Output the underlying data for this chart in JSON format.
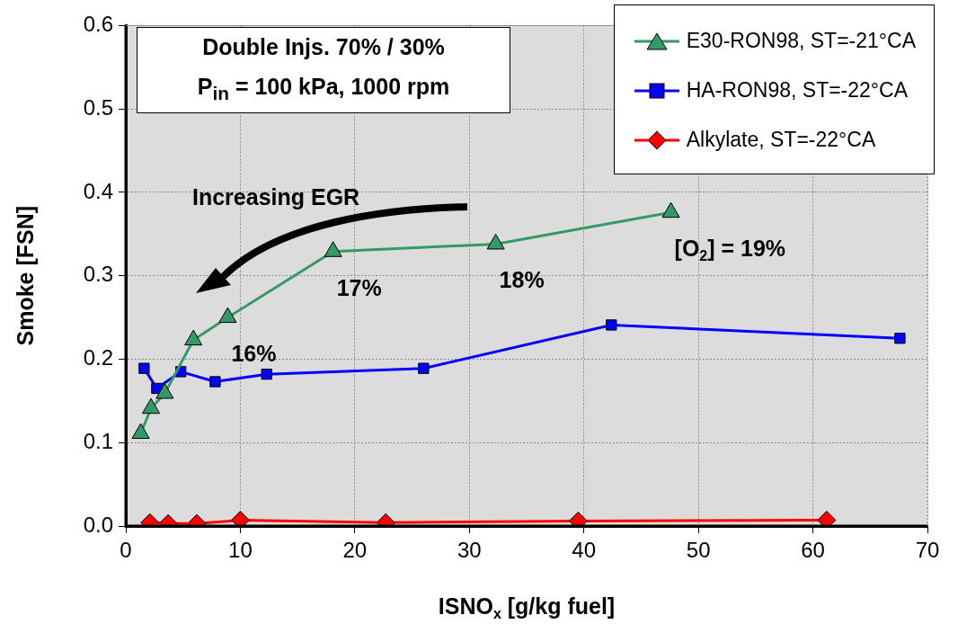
{
  "chart_data": {
    "type": "line",
    "xlabel": "ISNO$_{x}$ [g/kg fuel]",
    "ylabel": "Smoke [FSN]",
    "xlim": [
      0,
      70
    ],
    "xticks": [
      0,
      10,
      20,
      30,
      40,
      50,
      60,
      70
    ],
    "ylim": [
      0,
      0.6
    ],
    "yticks": [
      {
        "value": 0,
        "label": "0.0"
      },
      0.1,
      0.2,
      0.3,
      0.4,
      0.5,
      0.6
    ],
    "grid": true,
    "legend": "top right",
    "series": [
      {
        "name": "E30-RON98, ST=-21°CA",
        "type": "line",
        "marker": "triangle",
        "color": "#339966",
        "x": [
          1.3,
          2.2,
          3.4,
          5.9,
          8.9,
          18.1,
          32.3,
          47.6
        ],
        "values": [
          0.111,
          0.141,
          0.159,
          0.223,
          0.25,
          0.329,
          0.338,
          0.376
        ]
      },
      {
        "name": "HA-RON98, ST=-22°CA",
        "type": "line",
        "marker": "square",
        "color": "#0000ff",
        "x": [
          1.6,
          2.7,
          4.8,
          7.8,
          12.3,
          26.0,
          42.4,
          67.6
        ],
        "values": [
          0.189,
          0.165,
          0.185,
          0.173,
          0.182,
          0.189,
          0.241,
          0.225
        ]
      },
      {
        "name": "Alkylate, ST=-22°CA",
        "type": "line",
        "marker": "diamond",
        "color": "#ff0000",
        "x": [
          2.1,
          3.7,
          6.2,
          10.0,
          22.7,
          39.5,
          61.2
        ],
        "values": [
          0.004,
          0.003,
          0.003,
          0.007,
          0.004,
          0.006,
          0.007
        ]
      }
    ],
    "annotations": [
      "Double Injs. 70% / 30%",
      "P$_{in}$ = 100 kPa, 1000 rpm",
      "Increasing EGR",
      {
        "text": "16%",
        "x": 8.9,
        "y": 0.25
      },
      {
        "text": "17%",
        "x": 18.1,
        "y": 0.329
      },
      {
        "text": "18%",
        "x": 32.3,
        "y": 0.338
      },
      {
        "text": "[O$_{2}$] = 19%",
        "x": 47.6,
        "y": 0.376
      }
    ]
  }
}
